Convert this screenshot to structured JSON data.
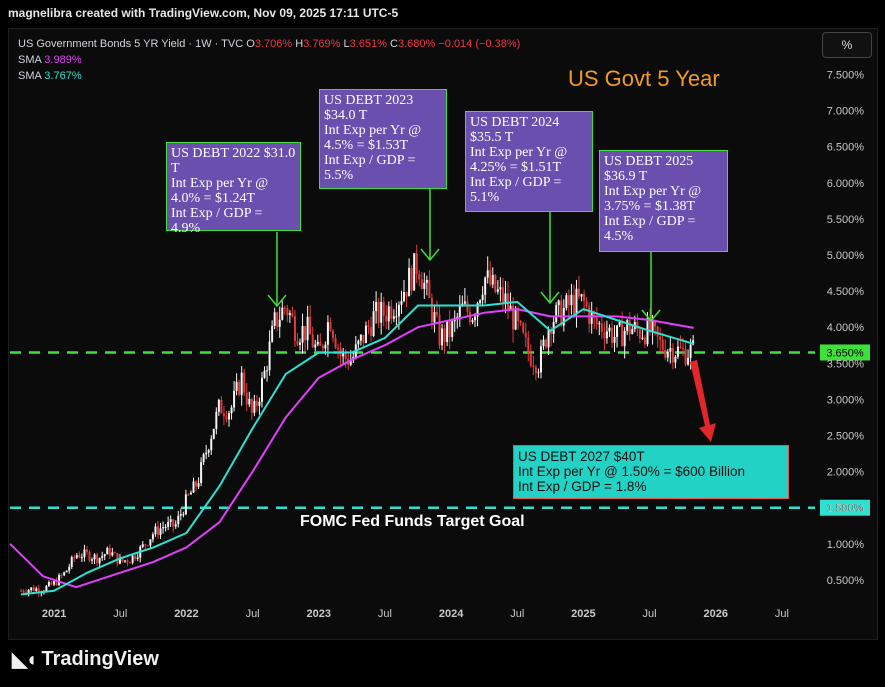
{
  "header": {
    "created_by": "magnelibra created with TradingView.com, Nov 09, 2025 17:11 UTC-5"
  },
  "legend": {
    "symbol": "US Government Bonds 5 YR Yield · 1W · TVC",
    "o_label": "O",
    "o_val": "3.706%",
    "h_label": "H",
    "h_val": "3.769%",
    "l_label": "L",
    "l_val": "3.651%",
    "c_label": "C",
    "c_val": "3.680%",
    "change": "−0.014 (−0.38%)",
    "sma1_label": "SMA",
    "sma1_val": "3.989%",
    "sma2_label": "SMA",
    "sma2_val": "3.767%"
  },
  "unit_button": "%",
  "brand": "TradingView",
  "annotations": {
    "title": "US Govt 5 Year",
    "debt2022": "US DEBT 2022 $31.0\nT\nInt Exp per Yr @\n4.0% = $1.24T\nInt Exp / GDP =\n4.9%",
    "debt2023": "US DEBT 2023\n$34.0 T\nInt Exp per Yr @\n4.5% = $1.53T\nInt Exp / GDP =\n5.5%",
    "debt2024": "US DEBT 2024\n$35.5 T\nInt Exp per Yr @\n4.25% = $1.51T\nInt Exp / GDP =\n5.1%",
    "debt2025": "US DEBT 2025\n$36.9 T\nInt Exp per Yr @\n3.75% = $1.38T\nInt Exp / GDP =\n4.5%",
    "debt2027": "US DEBT 2027 $40T\nInt Exp per Yr @ 1.50% = $600 Billion\nInt Exp / GDP = 1.8%",
    "fomc": "FOMC Fed Funds Target Goal"
  },
  "colors": {
    "candle_up": "#f5f5f5",
    "candle_down": "#e23b3b",
    "sma_fast": "#2fe0d0",
    "sma_slow": "#e040fb",
    "level_green": "#3fe03a",
    "level_cyan": "#2fe0d0",
    "arrow_green": "#3fe03a",
    "arrow_red": "#e3262a"
  },
  "chart_data": {
    "type": "candlestick",
    "x_tick_labels": [
      "2021",
      "Jul",
      "2022",
      "Jul",
      "2023",
      "Jul",
      "2024",
      "Jul",
      "2025",
      "Jul",
      "2026",
      "Jul"
    ],
    "x_tick_dates": [
      "2021-01",
      "2021-07",
      "2022-01",
      "2022-07",
      "2023-01",
      "2023-07",
      "2024-01",
      "2024-07",
      "2025-01",
      "2025-07",
      "2026-01",
      "2026-07"
    ],
    "y_ticks": [
      0.5,
      1.0,
      1.5,
      2.0,
      2.5,
      3.0,
      3.5,
      4.0,
      4.5,
      5.0,
      5.5,
      6.0,
      6.5,
      7.0,
      7.5
    ],
    "y_tick_labels": [
      "0.500%",
      "1.000%",
      "1.500%",
      "2.000%",
      "2.500%",
      "3.000%",
      "3.500%",
      "4.000%",
      "4.500%",
      "5.000%",
      "5.500%",
      "6.000%",
      "6.500%",
      "7.000%",
      "7.500%"
    ],
    "ylim": [
      0.25,
      7.7
    ],
    "xlim": [
      "2020-09",
      "2026-10"
    ],
    "horizontal_levels": [
      {
        "value": 3.65,
        "label": "3.650%",
        "color": "#3fe03a"
      },
      {
        "value": 1.5,
        "label": "1.500%",
        "color": "#2fe0d0"
      }
    ],
    "price_path": [
      [
        "2020-10",
        0.35
      ],
      [
        "2020-11",
        0.38
      ],
      [
        "2020-12",
        0.37
      ],
      [
        "2021-01",
        0.45
      ],
      [
        "2021-02",
        0.6
      ],
      [
        "2021-03",
        0.85
      ],
      [
        "2021-04",
        0.85
      ],
      [
        "2021-05",
        0.8
      ],
      [
        "2021-06",
        0.9
      ],
      [
        "2021-07",
        0.75
      ],
      [
        "2021-08",
        0.8
      ],
      [
        "2021-09",
        0.95
      ],
      [
        "2021-10",
        1.15
      ],
      [
        "2021-11",
        1.25
      ],
      [
        "2021-12",
        1.25
      ],
      [
        "2022-01",
        1.6
      ],
      [
        "2022-02",
        1.85
      ],
      [
        "2022-03",
        2.4
      ],
      [
        "2022-04",
        2.9
      ],
      [
        "2022-05",
        2.85
      ],
      [
        "2022-06",
        3.3
      ],
      [
        "2022-07",
        2.75
      ],
      [
        "2022-08",
        3.3
      ],
      [
        "2022-09",
        4.05
      ],
      [
        "2022-10",
        4.3
      ],
      [
        "2022-11",
        3.95
      ],
      [
        "2022-12",
        3.95
      ],
      [
        "2023-01",
        3.6
      ],
      [
        "2023-02",
        4.15
      ],
      [
        "2023-03",
        3.6
      ],
      [
        "2023-04",
        3.55
      ],
      [
        "2023-05",
        3.85
      ],
      [
        "2023-06",
        4.15
      ],
      [
        "2023-07",
        4.2
      ],
      [
        "2023-08",
        4.35
      ],
      [
        "2023-09",
        4.6
      ],
      [
        "2023-10",
        4.9
      ],
      [
        "2023-11",
        4.35
      ],
      [
        "2023-12",
        3.85
      ],
      [
        "2024-01",
        3.95
      ],
      [
        "2024-02",
        4.25
      ],
      [
        "2024-03",
        4.2
      ],
      [
        "2024-04",
        4.7
      ],
      [
        "2024-05",
        4.5
      ],
      [
        "2024-06",
        4.35
      ],
      [
        "2024-07",
        4.0
      ],
      [
        "2024-08",
        3.65
      ],
      [
        "2024-09",
        3.5
      ],
      [
        "2024-10",
        4.1
      ],
      [
        "2024-11",
        4.2
      ],
      [
        "2024-12",
        4.35
      ],
      [
        "2025-01",
        4.35
      ],
      [
        "2025-02",
        4.05
      ],
      [
        "2025-03",
        4.0
      ],
      [
        "2025-04",
        3.85
      ],
      [
        "2025-05",
        4.0
      ],
      [
        "2025-06",
        3.95
      ],
      [
        "2025-07",
        3.95
      ],
      [
        "2025-08",
        3.75
      ],
      [
        "2025-09",
        3.7
      ],
      [
        "2025-10",
        3.65
      ],
      [
        "2025-11",
        3.68
      ]
    ],
    "sma_fast": [
      [
        "2020-10",
        0.3
      ],
      [
        "2021-01",
        0.35
      ],
      [
        "2021-04",
        0.6
      ],
      [
        "2021-07",
        0.8
      ],
      [
        "2021-10",
        0.95
      ],
      [
        "2022-01",
        1.15
      ],
      [
        "2022-04",
        1.8
      ],
      [
        "2022-07",
        2.6
      ],
      [
        "2022-10",
        3.35
      ],
      [
        "2023-01",
        3.65
      ],
      [
        "2023-04",
        3.65
      ],
      [
        "2023-07",
        3.85
      ],
      [
        "2023-10",
        4.3
      ],
      [
        "2024-01",
        4.3
      ],
      [
        "2024-04",
        4.3
      ],
      [
        "2024-07",
        4.35
      ],
      [
        "2024-10",
        3.95
      ],
      [
        "2025-01",
        4.25
      ],
      [
        "2025-04",
        4.1
      ],
      [
        "2025-07",
        3.95
      ],
      [
        "2025-11",
        3.77
      ]
    ],
    "sma_slow": [
      [
        "2020-09",
        1.0
      ],
      [
        "2020-12",
        0.55
      ],
      [
        "2021-03",
        0.4
      ],
      [
        "2021-07",
        0.6
      ],
      [
        "2021-10",
        0.75
      ],
      [
        "2022-01",
        0.95
      ],
      [
        "2022-04",
        1.3
      ],
      [
        "2022-07",
        2.0
      ],
      [
        "2022-10",
        2.75
      ],
      [
        "2023-01",
        3.3
      ],
      [
        "2023-04",
        3.55
      ],
      [
        "2023-07",
        3.75
      ],
      [
        "2023-10",
        4.0
      ],
      [
        "2024-01",
        4.1
      ],
      [
        "2024-04",
        4.2
      ],
      [
        "2024-07",
        4.25
      ],
      [
        "2024-10",
        4.15
      ],
      [
        "2025-01",
        4.15
      ],
      [
        "2025-04",
        4.15
      ],
      [
        "2025-07",
        4.1
      ],
      [
        "2025-11",
        3.99
      ]
    ]
  }
}
